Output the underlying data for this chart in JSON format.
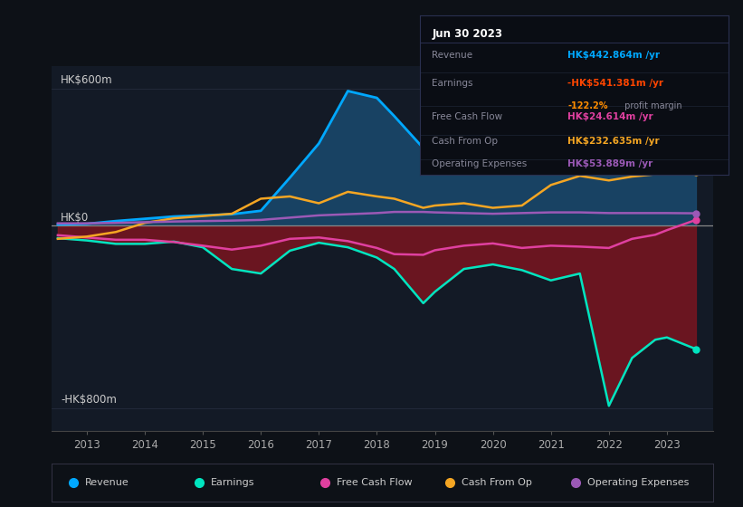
{
  "background_color": "#0d1117",
  "chart_bg": "#131a26",
  "ylim": [
    -900,
    700
  ],
  "ytick_positions": [
    -800,
    0,
    600
  ],
  "ytick_labels": [
    "-HK$800m",
    "HK$0",
    "HK$600m"
  ],
  "years": [
    2012.5,
    2013,
    2013.5,
    2014,
    2014.5,
    2015,
    2015.5,
    2016,
    2016.5,
    2017,
    2017.5,
    2018,
    2018.3,
    2018.8,
    2019,
    2019.5,
    2020,
    2020.5,
    2021,
    2021.5,
    2022,
    2022.4,
    2022.8,
    2023,
    2023.5
  ],
  "revenue": [
    5,
    8,
    20,
    30,
    40,
    45,
    50,
    65,
    210,
    360,
    590,
    560,
    480,
    340,
    360,
    420,
    350,
    390,
    460,
    480,
    310,
    430,
    510,
    520,
    443
  ],
  "earnings": [
    -55,
    -65,
    -80,
    -80,
    -70,
    -95,
    -190,
    -210,
    -110,
    -75,
    -95,
    -140,
    -190,
    -340,
    -290,
    -190,
    -170,
    -195,
    -240,
    -210,
    -790,
    -580,
    -500,
    -490,
    -541
  ],
  "free_cash_flow": [
    -42,
    -52,
    -62,
    -62,
    -72,
    -88,
    -105,
    -88,
    -58,
    -52,
    -68,
    -98,
    -125,
    -128,
    -108,
    -88,
    -78,
    -98,
    -88,
    -92,
    -98,
    -58,
    -40,
    -20,
    25
  ],
  "cash_from_op": [
    -58,
    -48,
    -28,
    12,
    32,
    42,
    52,
    118,
    128,
    98,
    148,
    128,
    118,
    78,
    88,
    98,
    78,
    88,
    178,
    218,
    198,
    215,
    225,
    228,
    233
  ],
  "operating_expenses": [
    10,
    10,
    12,
    15,
    18,
    20,
    22,
    25,
    35,
    45,
    50,
    55,
    60,
    60,
    58,
    55,
    52,
    55,
    58,
    58,
    55,
    55,
    55,
    55,
    54
  ],
  "colors": {
    "revenue": "#00a8ff",
    "revenue_fill": "#1a4a6e",
    "earnings_line": "#00e5c0",
    "earnings_fill_neg": "#7a1520",
    "free_cash_flow": "#e040a0",
    "cash_from_op": "#f5a623",
    "operating_expenses": "#9b59b6",
    "zero_line": "#888888",
    "grid_line": "#252d3d"
  },
  "info_box": {
    "date": "Jun 30 2023",
    "rows": [
      {
        "label": "Revenue",
        "value": "HK$442.864m /yr",
        "color": "#00a8ff",
        "sub": null,
        "sub_color": null
      },
      {
        "label": "Earnings",
        "value": "-HK$541.381m /yr",
        "color": "#ff4500",
        "sub": "-122.2% profit margin",
        "sub_color": "#ff8c00"
      },
      {
        "label": "Free Cash Flow",
        "value": "HK$24.614m /yr",
        "color": "#e040a0",
        "sub": null,
        "sub_color": null
      },
      {
        "label": "Cash From Op",
        "value": "HK$232.635m /yr",
        "color": "#f5a623",
        "sub": null,
        "sub_color": null
      },
      {
        "label": "Operating Expenses",
        "value": "HK$53.889m /yr",
        "color": "#9b59b6",
        "sub": null,
        "sub_color": null
      }
    ]
  },
  "legend": [
    {
      "label": "Revenue",
      "color": "#00a8ff"
    },
    {
      "label": "Earnings",
      "color": "#00e5c0"
    },
    {
      "label": "Free Cash Flow",
      "color": "#e040a0"
    },
    {
      "label": "Cash From Op",
      "color": "#f5a623"
    },
    {
      "label": "Operating Expenses",
      "color": "#9b59b6"
    }
  ]
}
